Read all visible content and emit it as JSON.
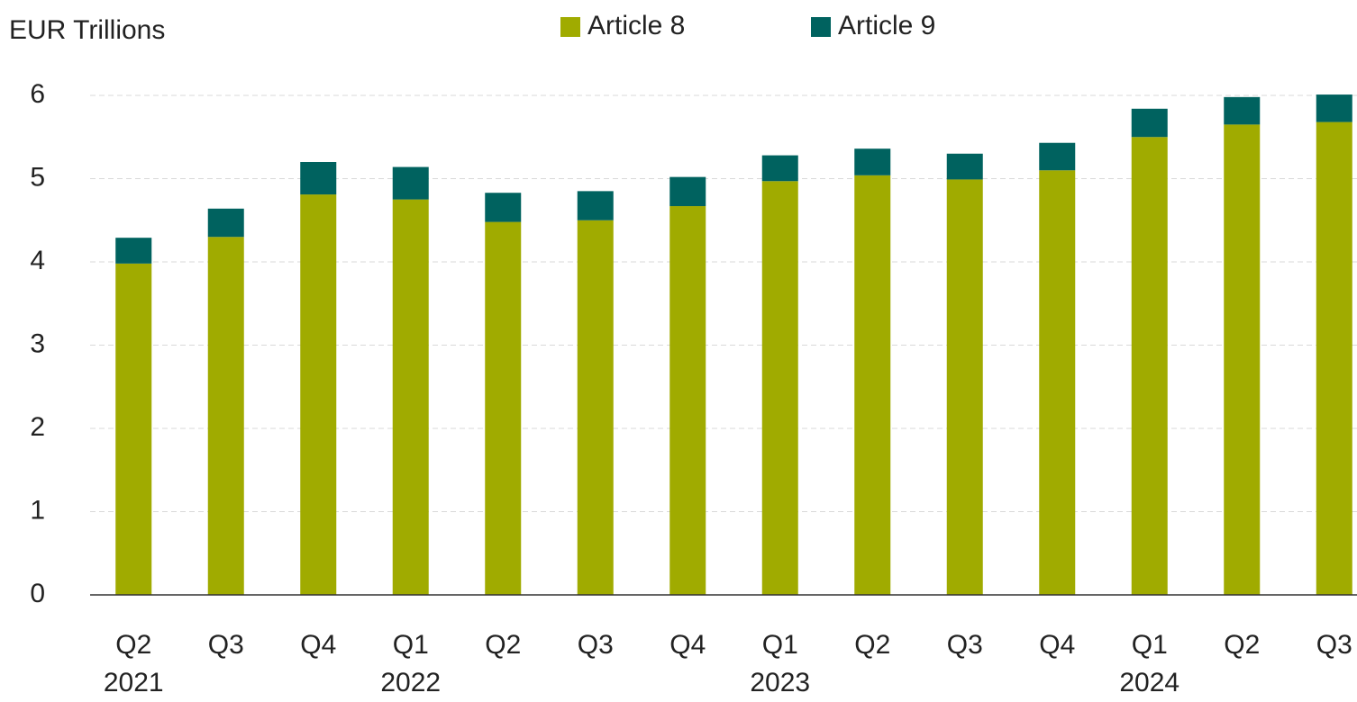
{
  "chart_data": {
    "type": "stacked_bar",
    "y_label": "EUR Trillions",
    "categories": [
      "Q2",
      "Q3",
      "Q4",
      "Q1",
      "Q2",
      "Q3",
      "Q4",
      "Q1",
      "Q2",
      "Q3",
      "Q4",
      "Q1",
      "Q2",
      "Q3"
    ],
    "category_years": [
      "2021",
      null,
      null,
      "2022",
      null,
      null,
      null,
      "2023",
      null,
      null,
      null,
      "2024",
      null,
      null
    ],
    "series": [
      {
        "name": "Article 8",
        "color": "#a0ab00",
        "values": [
          3.98,
          4.3,
          4.81,
          4.75,
          4.48,
          4.5,
          4.67,
          4.97,
          5.04,
          4.99,
          5.1,
          5.5,
          5.65,
          5.68
        ]
      },
      {
        "name": "Article 9",
        "color": "#00625f",
        "values": [
          0.31,
          0.34,
          0.39,
          0.39,
          0.35,
          0.35,
          0.35,
          0.31,
          0.32,
          0.31,
          0.33,
          0.34,
          0.33,
          0.33
        ]
      }
    ],
    "ylim": [
      0,
      6
    ],
    "yticks": [
      0,
      1,
      2,
      3,
      4,
      5,
      6
    ],
    "grid": true,
    "legend": "top"
  }
}
